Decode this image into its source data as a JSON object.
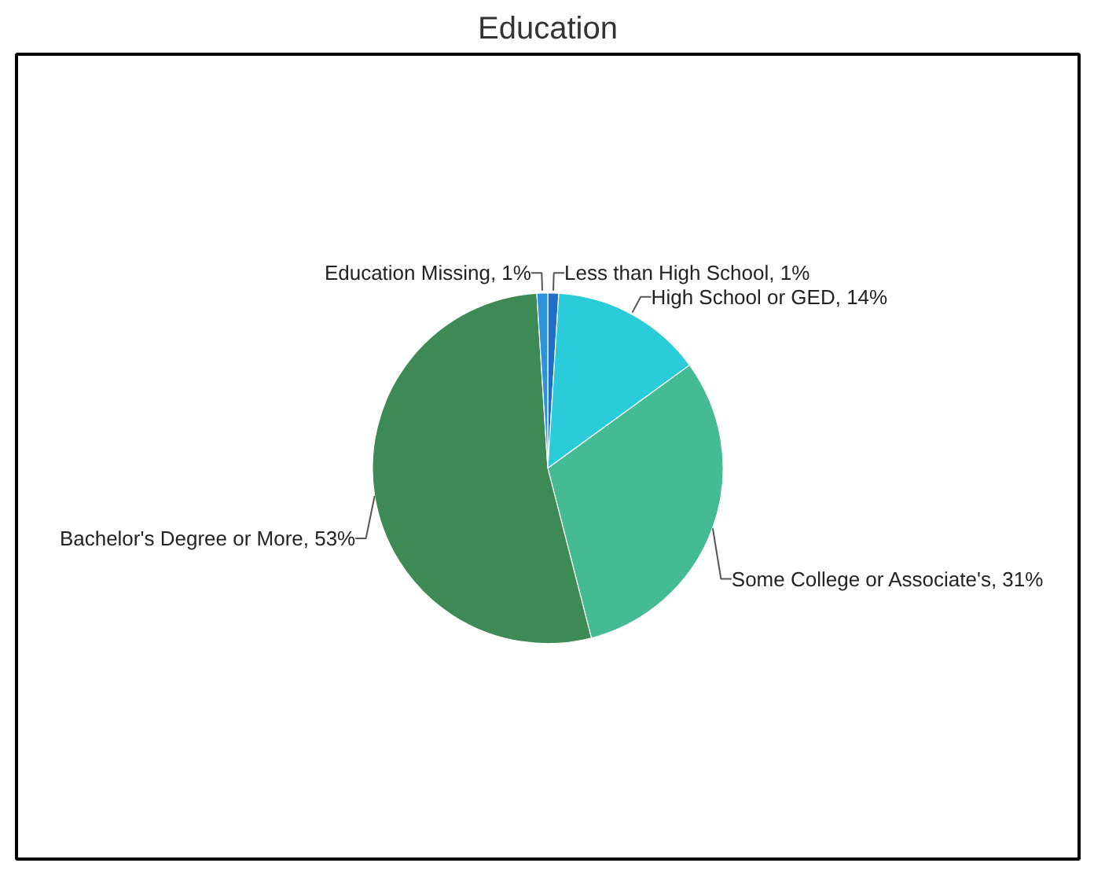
{
  "chart_data": {
    "type": "pie",
    "title": "Education",
    "categories": [
      "Less than High School",
      "High School or GED",
      "Some College or Associate's",
      "Bachelor's Degree or More",
      "Education Missing"
    ],
    "values": [
      1,
      14,
      31,
      53,
      1
    ],
    "value_labels": [
      "1%",
      "14%",
      "31%",
      "53%",
      "1%"
    ],
    "colors": [
      "#1f6fc4",
      "#29ccd8",
      "#45bb94",
      "#3d8a55",
      "#2a93dc"
    ]
  }
}
